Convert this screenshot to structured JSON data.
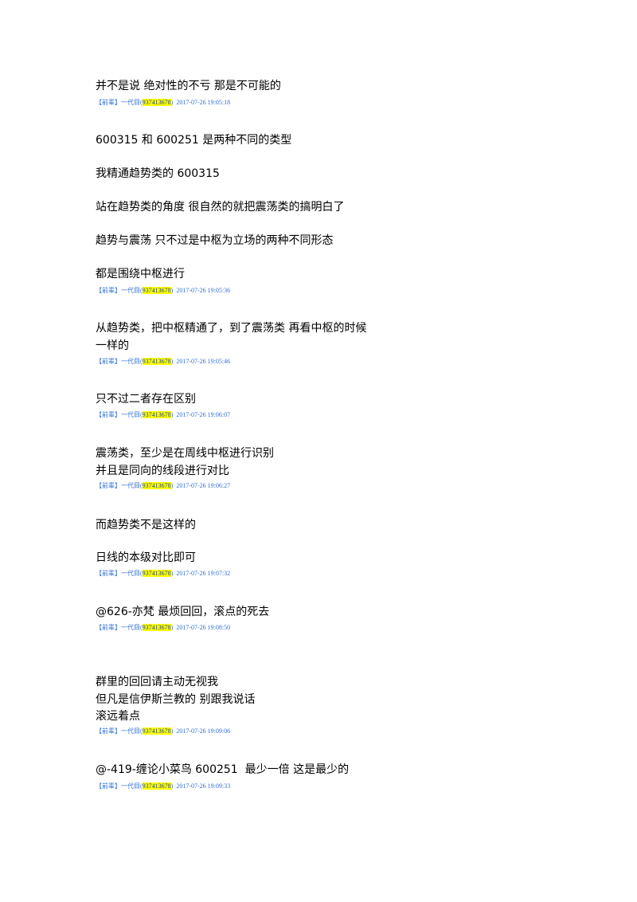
{
  "messages": [
    {
      "lines": [
        "并不是说 绝对性的不亏 那是不可能的"
      ],
      "meta": {
        "sender": "【前辈】一代目(",
        "qq": "937413678",
        "close": ")",
        "time": "2017-07-26 19:05:18"
      }
    },
    {
      "lines": [
        "600315 和 600251 是两种不同的类型",
        "我精通趋势类的 600315",
        "站在趋势类的角度 很自然的就把震荡类的搞明白了",
        "趋势与震荡 只不过是中枢为立场的两种不同形态",
        "都是围绕中枢进行"
      ],
      "meta": {
        "sender": "【前辈】一代目(",
        "qq": "937413678",
        "close": ")",
        "time": "2017-07-26 19:05:36"
      }
    },
    {
      "lines": [
        "从趋势类，把中枢精通了，到了震荡类 再看中枢的时候",
        "一样的"
      ],
      "meta": {
        "sender": "【前辈】一代目(",
        "qq": "937413678",
        "close": ")",
        "time": "2017-07-26 19:05:46"
      }
    },
    {
      "lines": [
        "只不过二者存在区别"
      ],
      "meta": {
        "sender": "【前辈】一代目(",
        "qq": "937413678",
        "close": ")",
        "time": "2017-07-26 19:06:07"
      }
    },
    {
      "lines": [
        "震荡类，至少是在周线中枢进行识别",
        "并且是同向的线段进行对比"
      ],
      "meta": {
        "sender": "【前辈】一代目(",
        "qq": "937413678",
        "close": ")",
        "time": "2017-07-26 19:06:27"
      }
    },
    {
      "lines": [
        "而趋势类不是这样的",
        "日线的本级对比即可"
      ],
      "meta": {
        "sender": "【前辈】一代目(",
        "qq": "937413678",
        "close": ")",
        "time": "2017-07-26 19:07:32"
      }
    },
    {
      "lines": [
        "@626-亦梵 最烦回回，滚点的死去"
      ],
      "meta": {
        "sender": "【前辈】一代目(",
        "qq": "937413678",
        "close": ")",
        "time": "2017-07-26 19:08:50"
      }
    },
    {
      "lines": [
        "群里的回回请主动无视我",
        "但凡是信伊斯兰教的 别跟我说话",
        "滚远着点"
      ],
      "meta": {
        "sender": "【前辈】一代目(",
        "qq": "937413678",
        "close": ")",
        "time": "2017-07-26 19:09:06"
      }
    },
    {
      "lines": [
        "@-419-缠论小菜鸟 600251  最少一倍 这是最少的"
      ],
      "meta": {
        "sender": "【前辈】一代目(",
        "qq": "937413678",
        "close": ")",
        "time": "2017-07-26 19:09:33"
      }
    }
  ]
}
